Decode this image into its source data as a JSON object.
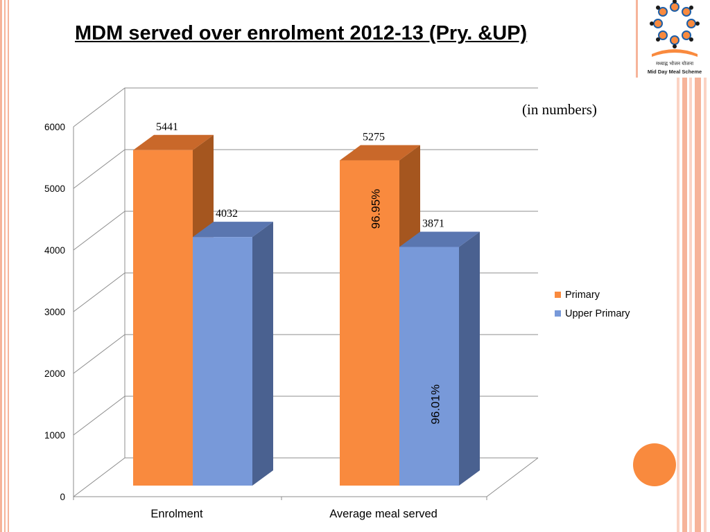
{
  "slide": {
    "title": "MDM served over enrolment 2012-13 (Pry. &UP)",
    "unit_note": "(in numbers)",
    "logo_text_hindi": "मध्याह्न भोजन योजना",
    "logo_text_english": "Mid Day Meal Scheme",
    "accent_color": "#f98a3e",
    "stripe_color": "#f6b49a"
  },
  "chart_data": {
    "type": "bar",
    "categories": [
      "Enrolment",
      "Average meal served"
    ],
    "series": [
      {
        "name": "Primary",
        "values": [
          5441,
          5275
        ],
        "color": "#f98a3e",
        "side_color": "#a5561f",
        "top_color": "#c9682a"
      },
      {
        "name": "Upper Primary",
        "values": [
          4032,
          3871
        ],
        "color": "#7899d9",
        "side_color": "#4a6190",
        "top_color": "#5a76b0"
      }
    ],
    "data_labels": [
      [
        "5441",
        "5275"
      ],
      [
        "4032",
        "3871"
      ]
    ],
    "annotations": [
      {
        "series": 0,
        "category": 1,
        "text": "96.95%"
      },
      {
        "series": 1,
        "category": 1,
        "text": "96.01%"
      }
    ],
    "yticks": [
      "0",
      "1000",
      "2000",
      "3000",
      "4000",
      "5000",
      "6000"
    ],
    "ylim": [
      0,
      6000
    ],
    "grid": true,
    "legend": "right",
    "projection": "3d-column"
  }
}
